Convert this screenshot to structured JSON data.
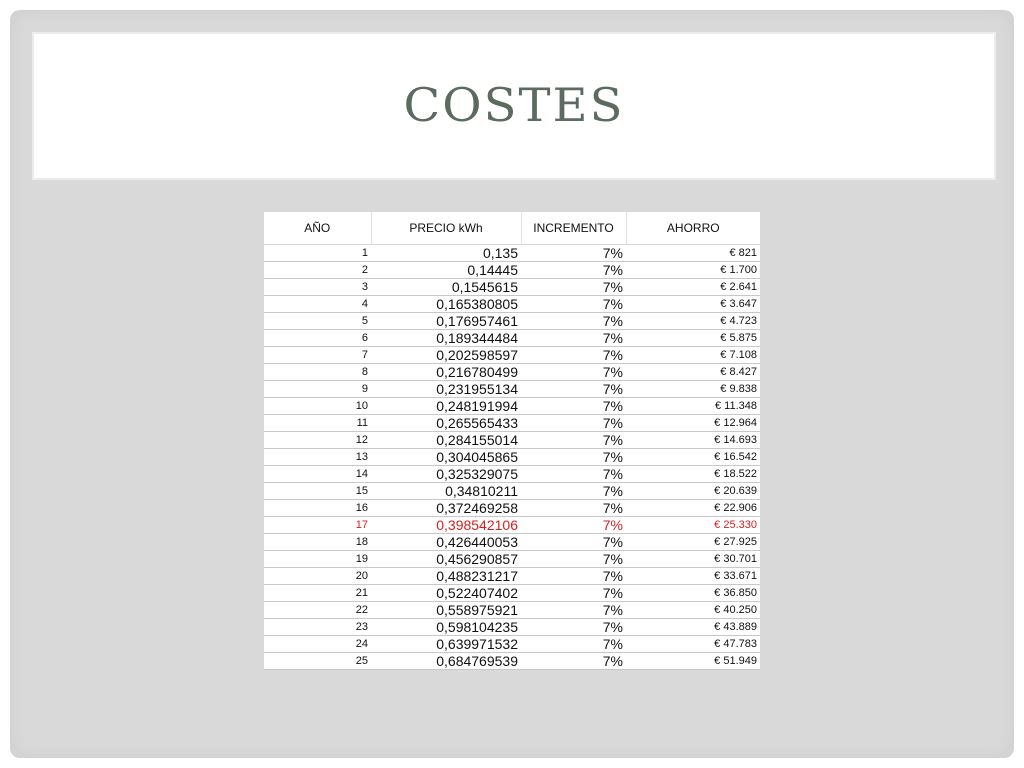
{
  "title": "COSTES",
  "table": {
    "headers": [
      "AÑO",
      "PRECIO kWh",
      "INCREMENTO",
      "AHORRO"
    ],
    "highlight_color": "#d62020",
    "rows": [
      {
        "year": "1",
        "price": "0,135",
        "increment": "7%",
        "saving": "€ 821",
        "highlight": false
      },
      {
        "year": "2",
        "price": "0,14445",
        "increment": "7%",
        "saving": "€ 1.700",
        "highlight": false
      },
      {
        "year": "3",
        "price": "0,1545615",
        "increment": "7%",
        "saving": "€ 2.641",
        "highlight": false
      },
      {
        "year": "4",
        "price": "0,165380805",
        "increment": "7%",
        "saving": "€ 3.647",
        "highlight": false
      },
      {
        "year": "5",
        "price": "0,176957461",
        "increment": "7%",
        "saving": "€ 4.723",
        "highlight": false
      },
      {
        "year": "6",
        "price": "0,189344484",
        "increment": "7%",
        "saving": "€ 5.875",
        "highlight": false
      },
      {
        "year": "7",
        "price": "0,202598597",
        "increment": "7%",
        "saving": "€ 7.108",
        "highlight": false
      },
      {
        "year": "8",
        "price": "0,216780499",
        "increment": "7%",
        "saving": "€ 8.427",
        "highlight": false
      },
      {
        "year": "9",
        "price": "0,231955134",
        "increment": "7%",
        "saving": "€ 9.838",
        "highlight": false
      },
      {
        "year": "10",
        "price": "0,248191994",
        "increment": "7%",
        "saving": "€ 11.348",
        "highlight": false
      },
      {
        "year": "11",
        "price": "0,265565433",
        "increment": "7%",
        "saving": "€ 12.964",
        "highlight": false
      },
      {
        "year": "12",
        "price": "0,284155014",
        "increment": "7%",
        "saving": "€ 14.693",
        "highlight": false
      },
      {
        "year": "13",
        "price": "0,304045865",
        "increment": "7%",
        "saving": "€ 16.542",
        "highlight": false
      },
      {
        "year": "14",
        "price": "0,325329075",
        "increment": "7%",
        "saving": "€ 18.522",
        "highlight": false
      },
      {
        "year": "15",
        "price": "0,34810211",
        "increment": "7%",
        "saving": "€ 20.639",
        "highlight": false
      },
      {
        "year": "16",
        "price": "0,372469258",
        "increment": "7%",
        "saving": "€ 22.906",
        "highlight": false
      },
      {
        "year": "17",
        "price": "0,398542106",
        "increment": "7%",
        "saving": "€ 25.330",
        "highlight": true
      },
      {
        "year": "18",
        "price": "0,426440053",
        "increment": "7%",
        "saving": "€ 27.925",
        "highlight": false
      },
      {
        "year": "19",
        "price": "0,456290857",
        "increment": "7%",
        "saving": "€ 30.701",
        "highlight": false
      },
      {
        "year": "20",
        "price": "0,488231217",
        "increment": "7%",
        "saving": "€ 33.671",
        "highlight": false
      },
      {
        "year": "21",
        "price": "0,522407402",
        "increment": "7%",
        "saving": "€ 36.850",
        "highlight": false
      },
      {
        "year": "22",
        "price": "0,558975921",
        "increment": "7%",
        "saving": "€ 40.250",
        "highlight": false
      },
      {
        "year": "23",
        "price": "0,598104235",
        "increment": "7%",
        "saving": "€ 43.889",
        "highlight": false
      },
      {
        "year": "24",
        "price": "0,639971532",
        "increment": "7%",
        "saving": "€ 47.783",
        "highlight": false
      },
      {
        "year": "25",
        "price": "0,684769539",
        "increment": "7%",
        "saving": "€ 51.949",
        "highlight": false
      }
    ]
  }
}
